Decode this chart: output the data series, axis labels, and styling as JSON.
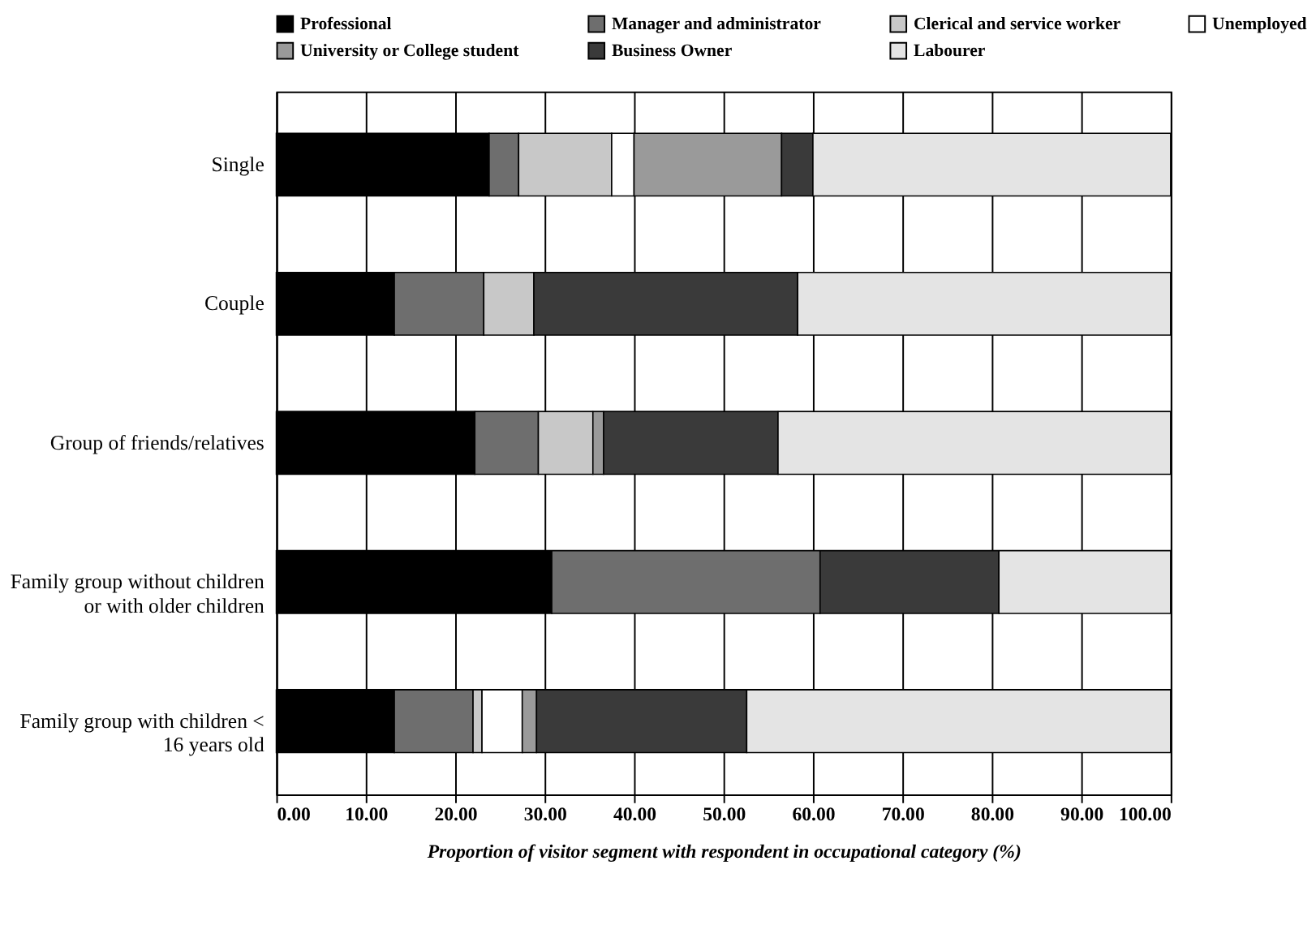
{
  "chart_data": {
    "type": "bar",
    "orientation": "horizontal",
    "stacked": true,
    "categories": [
      "Single",
      "Couple",
      "Group of friends/relatives",
      "Family group without children\nor with older children",
      "Family group with children <\n16 years old"
    ],
    "series": [
      {
        "name": "Professional",
        "color": "#000000",
        "values": [
          23.8,
          13.2,
          22.2,
          30.8,
          13.2
        ]
      },
      {
        "name": "Manager and administrator",
        "color": "#6e6e6e",
        "values": [
          3.3,
          10.0,
          7.1,
          30.0,
          8.8
        ]
      },
      {
        "name": "Clerical and service worker",
        "color": "#c8c8c8",
        "values": [
          10.4,
          5.6,
          6.1,
          null,
          1.0
        ]
      },
      {
        "name": "Unemployed",
        "color": "#ffffff",
        "values": [
          2.5,
          null,
          null,
          null,
          4.5
        ]
      },
      {
        "name": "University or College student",
        "color": "#9a9a9a",
        "values": [
          16.5,
          null,
          1.2,
          null,
          1.6
        ]
      },
      {
        "name": "Business Owner",
        "color": "#3a3a3a",
        "values": [
          3.5,
          29.5,
          19.5,
          20.0,
          23.5
        ]
      },
      {
        "name": "Labourer",
        "color": "#e4e4e4",
        "values": [
          40.0,
          41.7,
          43.9,
          19.2,
          47.4
        ]
      }
    ],
    "xlabel": "Proportion of visitor segment with respondent in occupational category (%)",
    "xlim": [
      0,
      100
    ],
    "xticks": [
      {
        "value": 0,
        "label": "0.00"
      },
      {
        "value": 10,
        "label": "10.00"
      },
      {
        "value": 20,
        "label": "20.00"
      },
      {
        "value": 30,
        "label": "30.00"
      },
      {
        "value": 40,
        "label": "40.00"
      },
      {
        "value": 50,
        "label": "50.00"
      },
      {
        "value": 60,
        "label": "60.00"
      },
      {
        "value": 70,
        "label": "70.00"
      },
      {
        "value": 80,
        "label": "80.00"
      },
      {
        "value": 90,
        "label": "90.00"
      },
      {
        "value": 100,
        "label": "100.00"
      }
    ],
    "grid": true,
    "legend": "top"
  }
}
